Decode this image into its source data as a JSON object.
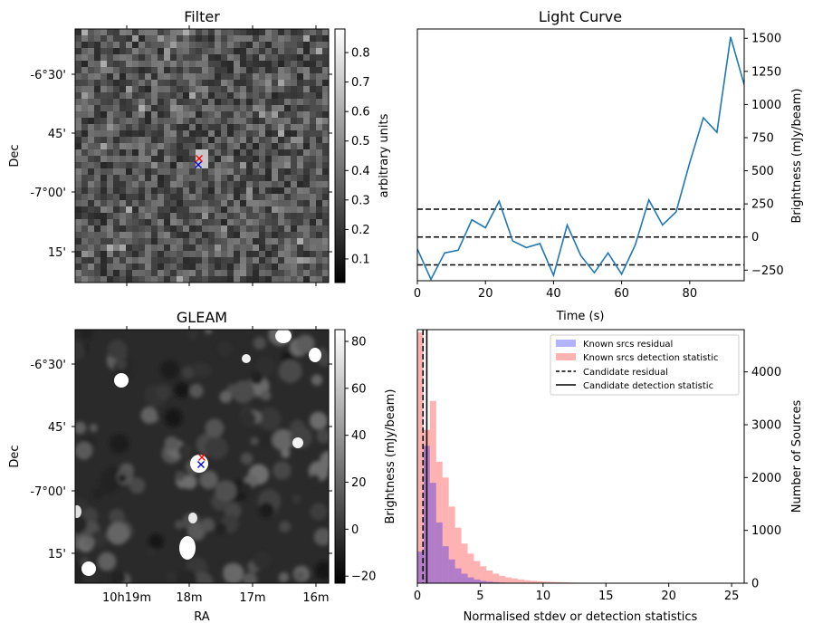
{
  "panels": {
    "filter": {
      "title": "Filter",
      "ylabel": "Dec",
      "yticks": [
        "-6°30'",
        "45'",
        "-7°00'",
        "15'"
      ],
      "colorbar": {
        "label": "arbitrary units",
        "ticks": [
          "0.1",
          "0.2",
          "0.3",
          "0.4",
          "0.5",
          "0.6",
          "0.7",
          "0.8"
        ],
        "range": [
          0.02,
          0.88
        ]
      }
    },
    "gleam": {
      "title": "GLEAM",
      "ylabel": "Dec",
      "xlabel": "RA",
      "yticks": [
        "-6°30'",
        "45'",
        "-7°00'",
        "15'"
      ],
      "xticks": [
        "10h19m",
        "18m",
        "17m",
        "16m"
      ],
      "colorbar": {
        "label": "Brightness (mJy/beam)",
        "ticks": [
          "−20",
          "0",
          "20",
          "40",
          "60",
          "80"
        ],
        "range": [
          -23,
          85
        ]
      }
    }
  },
  "markers": {
    "candidate_color": "#ff0000",
    "known_color": "#0000cc"
  },
  "chart_data": [
    {
      "type": "line",
      "title": "Light Curve",
      "xlabel": "Time (s)",
      "ylabel": "Brightness (mJy/beam)",
      "xlim": [
        0,
        96
      ],
      "ylim": [
        -330,
        1570
      ],
      "xticks": [
        "0",
        "20",
        "40",
        "60",
        "80"
      ],
      "yticks": [
        "−250",
        "0",
        "250",
        "500",
        "750",
        "1000",
        "1250",
        "1500"
      ],
      "x": [
        0,
        4,
        8,
        12,
        16,
        20,
        24,
        28,
        32,
        36,
        40,
        44,
        48,
        52,
        56,
        60,
        64,
        68,
        72,
        76,
        80,
        84,
        88,
        92,
        96
      ],
      "y": [
        -90,
        -320,
        -120,
        -100,
        130,
        70,
        270,
        -30,
        -80,
        -50,
        -290,
        90,
        -140,
        -270,
        -120,
        -280,
        -60,
        280,
        90,
        190,
        560,
        900,
        790,
        1510,
        1150
      ],
      "hlines": [
        -210,
        0,
        210
      ],
      "line_color": "#1f77b4"
    },
    {
      "type": "histogram",
      "xlabel": "Normalised stdev or detection statistics",
      "ylabel": "Number of Sources",
      "xlim": [
        0,
        26
      ],
      "ylim": [
        0,
        4800
      ],
      "xticks": [
        "0",
        "5",
        "10",
        "15",
        "20",
        "25"
      ],
      "yticks": [
        "0",
        "1000",
        "2000",
        "3000",
        "4000"
      ],
      "series": [
        {
          "name": "Known srcs residual",
          "color": "#0000ff",
          "bin_width": 0.5,
          "values": [
            600,
            2600,
            1900,
            1150,
            700,
            450,
            280,
            180,
            110,
            70,
            45,
            30,
            20,
            12,
            8,
            5,
            4,
            3,
            2,
            2
          ]
        },
        {
          "name": "Known srcs detection statistic",
          "color": "#ff0000",
          "bin_width": 0.5,
          "values": [
            4750,
            2900,
            3450,
            2300,
            2000,
            1450,
            1050,
            750,
            560,
            420,
            320,
            240,
            180,
            140,
            110,
            90,
            70,
            55,
            45,
            38,
            30,
            25,
            20,
            16,
            12,
            10,
            8,
            7,
            6,
            5,
            4,
            4,
            3,
            3,
            2,
            2,
            2,
            2,
            1,
            1,
            1,
            1,
            1,
            1,
            1,
            1,
            1,
            1,
            1,
            1
          ]
        }
      ],
      "vlines": [
        {
          "name": "Candidate residual",
          "x": 0.45,
          "style": "dashed"
        },
        {
          "name": "Candidate detection statistic",
          "x": 0.75,
          "style": "solid"
        }
      ]
    }
  ]
}
